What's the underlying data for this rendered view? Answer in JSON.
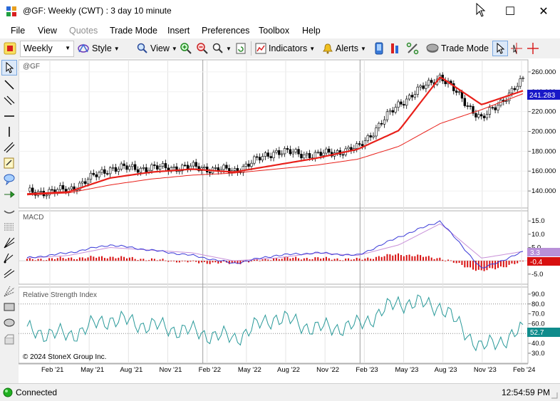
{
  "window": {
    "title": "@GF: Weekly (CWT) : 3 day 10 minute",
    "minimize": "—",
    "maximize": "☐",
    "close": "✕"
  },
  "menu": {
    "items": [
      "File",
      "View",
      "Quotes",
      "Trade Mode",
      "Insert",
      "Preferences",
      "Toolbox",
      "Help"
    ]
  },
  "toolbar": {
    "interval": "Weekly",
    "style_label": "Style",
    "view_label": "View",
    "indicators_label": "Indicators",
    "alerts_label": "Alerts",
    "trade_mode_label": "Trade Mode"
  },
  "chart": {
    "symbol": "@GF",
    "price_label": "241.283",
    "price_ticks": [
      "260.000",
      "240.000",
      "220.000",
      "200.000",
      "180.000",
      "160.000",
      "140.000"
    ],
    "macd_title": "MACD",
    "macd_ticks": [
      "15.0",
      "10.0",
      "5.0",
      "-5.0"
    ],
    "macd_label": "3.3",
    "macd_hist_label": "-0.4",
    "rsi_title": "Relative Strength Index",
    "rsi_ticks": [
      "90.0",
      "80.0",
      "70.0",
      "60.0",
      "50.0",
      "40.0",
      "30.0"
    ],
    "rsi_label": "52.7",
    "copyright": "© 2024 StoneX Group Inc.",
    "x_labels": [
      "Feb '21",
      "May '21",
      "Aug '21",
      "Nov '21",
      "Feb '22",
      "May '22",
      "Aug '22",
      "Nov '22",
      "Feb '23",
      "May '23",
      "Aug '23",
      "Nov '23",
      "Feb '24"
    ]
  },
  "status": {
    "connection": "Connected",
    "time": "12:54:59 PM"
  },
  "colors": {
    "ma_fast": "#e8201a",
    "ma_slow": "#e8201a",
    "macd_line": "#3a3ad8",
    "signal_line": "#c890d8",
    "hist_bar": "#d81010",
    "rsi_line": "#2a9a9a",
    "price_badge": "#1818c8",
    "macd_badge": "#b890d8",
    "hist_badge": "#d81010",
    "rsi_badge": "#108c8c",
    "connected": "#20b020"
  },
  "chart_data": {
    "type": "line",
    "title": "@GF Weekly",
    "x": [
      "Feb '21",
      "May '21",
      "Aug '21",
      "Nov '21",
      "Feb '22",
      "May '22",
      "Aug '22",
      "Nov '22",
      "Feb '23",
      "May '23",
      "Aug '23",
      "Nov '23",
      "Feb '24"
    ],
    "series": [
      {
        "values": [
          138,
          141,
          163,
          163,
          164,
          160,
          180,
          176,
          183,
          228,
          256,
          212,
          251
        ]
      },
      {
        "values": [
          137,
          139,
          153,
          159,
          162,
          159,
          166,
          173,
          182,
          201,
          255,
          227,
          241
        ]
      },
      {
        "values": [
          136,
          138,
          146,
          152,
          156,
          158,
          162,
          166,
          172,
          185,
          208,
          222,
          238
        ]
      }
    ],
    "price_ylim": [
      125,
      270
    ],
    "macd": {
      "macd_line": [
        1,
        3,
        6,
        4,
        2,
        -1,
        2,
        3,
        2,
        9,
        15,
        -3,
        3.3
      ],
      "signal_line": [
        1,
        2,
        5,
        4,
        3,
        0,
        1,
        3,
        2,
        6,
        14,
        1,
        3.5
      ],
      "histogram": [
        0.5,
        1,
        1.5,
        0.5,
        -0.5,
        -1,
        1,
        1,
        0.5,
        2.5,
        1,
        -4,
        -0.4
      ],
      "ylim": [
        -8,
        18
      ]
    },
    "rsi": {
      "values": [
        53,
        48,
        65,
        58,
        52,
        45,
        67,
        55,
        58,
        82,
        78,
        35,
        52.7
      ],
      "ylim": [
        22,
        95
      ],
      "levels": [
        80,
        50
      ]
    }
  }
}
